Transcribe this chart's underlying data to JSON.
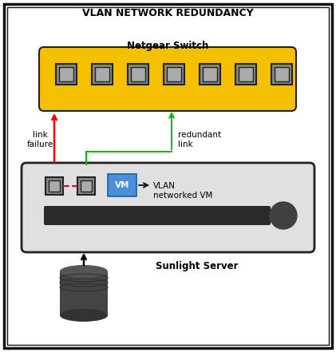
{
  "title": "VLAN NETWORK REDUNDANCY",
  "title_fontsize": 9,
  "netgear_label": "Netgear Switch",
  "netgear_label_fontsize": 8.5,
  "sunlight_label": "Sunlight Server",
  "sunlight_label_fontsize": 8.5,
  "vlan_label": "VLAN\nnetworked VM",
  "vm_label": "VM",
  "link_failure_label": "link\nfailure",
  "redundant_link_label": "redundant\nlink",
  "switch_color": "#F5C000",
  "switch_border": "#222222",
  "port_color": "#888888",
  "port_border": "#222222",
  "server_box_color": "#E0E0E0",
  "server_box_border": "#222222",
  "vm_color": "#4A90D9",
  "vm_text_color": "#FFFFFF",
  "dark_bar_color": "#2A2A2A",
  "circle_color": "#404040",
  "red_arrow_color": "#EE0000",
  "green_arrow_color": "#00BB00",
  "black_arrow_color": "#000000",
  "dashed_red_color": "#EE0000",
  "outer_border_color": "#111111",
  "bg_color": "#FFFFFF",
  "cyl_color": "#444444",
  "cyl_top_color": "#555555"
}
